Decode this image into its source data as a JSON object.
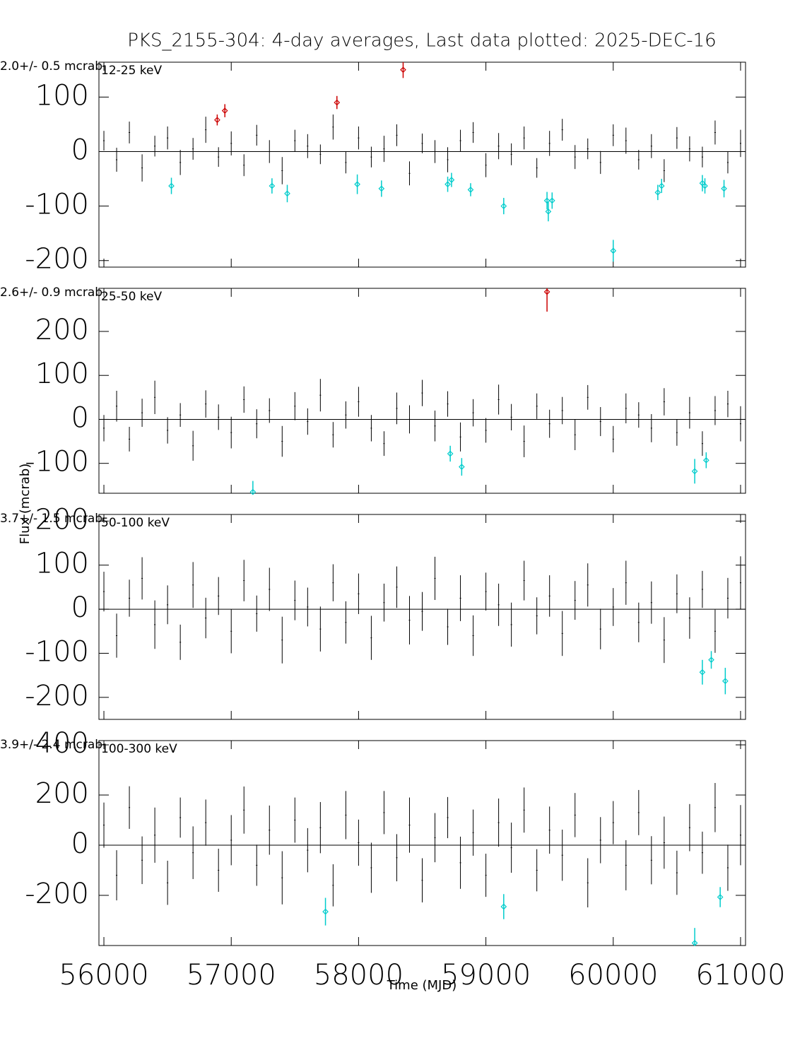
{
  "title": "PKS_2155-304:  4-day averages,  Last data plotted: 2025-DEC-16",
  "y_label": "Flux (mcrab)",
  "x_label": "Time (MJD)",
  "chart_data": [
    {
      "type": "errorbar",
      "band": "12-25 keV",
      "mean_label": "2.0+/-    0.5 mcrab",
      "xlim": [
        55961,
        61039
      ],
      "xticks": [
        56000,
        57000,
        58000,
        59000,
        60000,
        61000
      ],
      "ylim": [
        -212,
        164
      ],
      "yticks": [
        -200,
        -100,
        0,
        100
      ],
      "series": [
        {
          "color": "#000000",
          "marker": "none",
          "x": [
            56000,
            56100,
            56200,
            56300,
            56400,
            56500,
            56600,
            56700,
            56800,
            56900,
            57000,
            57100,
            57200,
            57300,
            57400,
            57500,
            57600,
            57700,
            57800,
            57900,
            58000,
            58100,
            58200,
            58300,
            58400,
            58500,
            58600,
            58700,
            58800,
            58900,
            59000,
            59100,
            59200,
            59300,
            59400,
            59500,
            59600,
            59700,
            59800,
            59900,
            60000,
            60100,
            60200,
            60300,
            60400,
            60500,
            60600,
            60700,
            60800,
            60900,
            61000
          ],
          "values": [
            20,
            -15,
            35,
            -30,
            10,
            25,
            -20,
            5,
            40,
            -10,
            15,
            -25,
            30,
            0,
            -35,
            20,
            10,
            -5,
            45,
            -20,
            25,
            -10,
            5,
            30,
            -40,
            15,
            0,
            -15,
            20,
            35,
            -25,
            10,
            -5,
            25,
            -30,
            15,
            40,
            -10,
            5,
            -20,
            30,
            20,
            -15,
            10,
            -35,
            25,
            5,
            -10,
            35,
            -20,
            15
          ],
          "errors": [
            18,
            22,
            20,
            25,
            19,
            21,
            23,
            20,
            24,
            18,
            22,
            20,
            19,
            21,
            25,
            20,
            22,
            18,
            23,
            20,
            21,
            19,
            24,
            20,
            22,
            18,
            21,
            23,
            20,
            19,
            22,
            24,
            20,
            21,
            18,
            23,
            20,
            22,
            19,
            21,
            20,
            24,
            18,
            22,
            21,
            20,
            23,
            19,
            22,
            20,
            25
          ]
        },
        {
          "color": "#cc0000",
          "marker": "diamond",
          "x": [
            56890,
            56950,
            57830,
            58350
          ],
          "values": [
            58,
            75,
            90,
            150
          ],
          "errors": [
            10,
            12,
            12,
            15
          ]
        },
        {
          "color": "#00cccc",
          "marker": "diamond",
          "x": [
            56530,
            57320,
            57440,
            57990,
            58180,
            58700,
            58730,
            58880,
            59140,
            59480,
            59490,
            59520,
            60000,
            60350,
            60380,
            60700,
            60720,
            60870
          ],
          "values": [
            -63,
            -63,
            -77,
            -60,
            -68,
            -60,
            -52,
            -70,
            -100,
            -90,
            -110,
            -90,
            -182,
            -75,
            -63,
            -58,
            -63,
            -68
          ],
          "errors": [
            15,
            14,
            16,
            18,
            15,
            14,
            13,
            12,
            15,
            16,
            18,
            15,
            20,
            14,
            13,
            15,
            14,
            16
          ]
        }
      ]
    },
    {
      "type": "errorbar",
      "band": "25-50 keV",
      "mean_label": "2.6+/-    0.9 mcrab",
      "xlim": [
        55961,
        61039
      ],
      "xticks": [
        56000,
        57000,
        58000,
        59000,
        60000,
        61000
      ],
      "ylim": [
        -168,
        298
      ],
      "yticks": [
        -100,
        0,
        100,
        200
      ],
      "series": [
        {
          "color": "#000000",
          "marker": "none",
          "x": [
            56000,
            56100,
            56200,
            56300,
            56400,
            56500,
            56600,
            56700,
            56800,
            56900,
            57000,
            57100,
            57200,
            57300,
            57400,
            57500,
            57600,
            57700,
            57800,
            57900,
            58000,
            58100,
            58200,
            58300,
            58400,
            58500,
            58600,
            58700,
            58800,
            58900,
            59000,
            59100,
            59200,
            59300,
            59400,
            59500,
            59600,
            59700,
            59800,
            59900,
            60000,
            60100,
            60200,
            60300,
            60400,
            60500,
            60600,
            60700,
            60800,
            60900,
            61000
          ],
          "values": [
            -20,
            30,
            -45,
            15,
            50,
            -25,
            10,
            -60,
            35,
            5,
            -30,
            45,
            -10,
            20,
            -50,
            30,
            -5,
            55,
            -35,
            10,
            40,
            -20,
            -55,
            25,
            0,
            60,
            -15,
            35,
            -40,
            15,
            -25,
            45,
            5,
            -50,
            30,
            -10,
            20,
            -35,
            50,
            -5,
            -45,
            25,
            10,
            -20,
            40,
            -30,
            15,
            -55,
            20,
            35,
            -10
          ],
          "errors": [
            30,
            35,
            28,
            32,
            38,
            30,
            27,
            34,
            31,
            29,
            36,
            30,
            33,
            28,
            35,
            32,
            30,
            37,
            29,
            31,
            34,
            30,
            28,
            36,
            32,
            30,
            35,
            29,
            33,
            31,
            28,
            34,
            30,
            36,
            29,
            32,
            31,
            35,
            28,
            33,
            30,
            34,
            29,
            32,
            31,
            30,
            36,
            28,
            33,
            30,
            40
          ]
        },
        {
          "color": "#cc0000",
          "marker": "diamond",
          "x": [
            59480
          ],
          "values": [
            290
          ],
          "errors": [
            45
          ]
        },
        {
          "color": "#00cccc",
          "marker": "diamond",
          "x": [
            57170,
            58720,
            58810,
            60640,
            60730
          ],
          "values": [
            -165,
            -78,
            -108,
            -118,
            -93
          ],
          "errors": [
            25,
            18,
            20,
            28,
            18
          ]
        }
      ]
    },
    {
      "type": "errorbar",
      "band": "50-100 keV",
      "mean_label": "3.7+/-    1.5 mcrab",
      "xlim": [
        55961,
        61039
      ],
      "xticks": [
        56000,
        57000,
        58000,
        59000,
        60000,
        61000
      ],
      "ylim": [
        -250,
        215
      ],
      "yticks": [
        -200,
        -100,
        0,
        100,
        200
      ],
      "series": [
        {
          "color": "#000000",
          "marker": "none",
          "x": [
            56000,
            56100,
            56200,
            56300,
            56400,
            56500,
            56600,
            56700,
            56800,
            56900,
            57000,
            57100,
            57200,
            57300,
            57400,
            57500,
            57600,
            57700,
            57800,
            57900,
            58000,
            58100,
            58200,
            58300,
            58400,
            58500,
            58600,
            58700,
            58800,
            58900,
            59000,
            59100,
            59200,
            59300,
            59400,
            59500,
            59600,
            59700,
            59800,
            59900,
            60000,
            60100,
            60200,
            60300,
            60400,
            60500,
            60600,
            60700,
            60800,
            60900,
            61000
          ],
          "values": [
            40,
            -60,
            25,
            70,
            -35,
            10,
            -75,
            55,
            -20,
            30,
            -50,
            65,
            -10,
            45,
            -70,
            20,
            5,
            -45,
            60,
            -30,
            35,
            -65,
            15,
            50,
            -25,
            -5,
            70,
            -40,
            25,
            -60,
            40,
            10,
            -35,
            65,
            -15,
            30,
            -55,
            20,
            55,
            -45,
            5,
            60,
            -30,
            15,
            -70,
            35,
            -20,
            45,
            -50,
            25,
            60
          ],
          "errors": [
            45,
            50,
            42,
            48,
            55,
            44,
            40,
            52,
            46,
            43,
            50,
            47,
            41,
            49,
            53,
            45,
            44,
            51,
            42,
            48,
            46,
            50,
            43,
            47,
            55,
            44,
            49,
            41,
            52,
            46,
            43,
            48,
            50,
            45,
            42,
            47,
            51,
            44,
            49,
            46,
            43,
            50,
            45,
            48,
            52,
            44,
            47,
            42,
            49,
            46,
            60
          ]
        },
        {
          "color": "#00cccc",
          "marker": "diamond",
          "x": [
            60700,
            60770,
            60880
          ],
          "values": [
            -143,
            -115,
            -163
          ],
          "errors": [
            28,
            20,
            30
          ]
        }
      ]
    },
    {
      "type": "errorbar",
      "band": "100-300 keV",
      "mean_label": "3.9+/-    2.4 mcrab",
      "xlim": [
        55961,
        61039
      ],
      "xticks": [
        56000,
        57000,
        58000,
        59000,
        60000,
        61000
      ],
      "ylim": [
        -400,
        417
      ],
      "yticks": [
        -200,
        0,
        200,
        400
      ],
      "series": [
        {
          "color": "#000000",
          "marker": "none",
          "x": [
            56000,
            56100,
            56200,
            56300,
            56400,
            56500,
            56600,
            56700,
            56800,
            56900,
            57000,
            57100,
            57200,
            57300,
            57400,
            57500,
            57600,
            57700,
            57800,
            57900,
            58000,
            58100,
            58200,
            58300,
            58400,
            58500,
            58600,
            58700,
            58800,
            58900,
            59000,
            59100,
            59200,
            59300,
            59400,
            59500,
            59600,
            59700,
            59800,
            59900,
            60000,
            60100,
            60200,
            60300,
            60400,
            60500,
            60600,
            60700,
            60800,
            60900,
            61000
          ],
          "values": [
            80,
            -120,
            150,
            -60,
            40,
            -150,
            110,
            -30,
            90,
            -100,
            20,
            140,
            -80,
            60,
            -130,
            100,
            -20,
            70,
            -160,
            120,
            10,
            -90,
            130,
            -50,
            80,
            -140,
            30,
            110,
            -70,
            50,
            -120,
            90,
            -10,
            140,
            -100,
            60,
            -40,
            120,
            -150,
            20,
            90,
            -80,
            130,
            -60,
            10,
            -110,
            70,
            -30,
            150,
            -90,
            40
          ],
          "errors": [
            90,
            100,
            85,
            95,
            110,
            88,
            80,
            105,
            92,
            86,
            100,
            94,
            82,
            98,
            106,
            90,
            88,
            102,
            84,
            96,
            92,
            100,
            86,
            94,
            110,
            88,
            98,
            82,
            104,
            92,
            86,
            96,
            100,
            90,
            84,
            94,
            102,
            88,
            98,
            92,
            86,
            100,
            90,
            96,
            104,
            88,
            94,
            84,
            98,
            92,
            120
          ]
        },
        {
          "color": "#00cccc",
          "marker": "diamond",
          "x": [
            57740,
            59140,
            60640,
            60840
          ],
          "values": [
            -265,
            -245,
            -390,
            -207
          ],
          "errors": [
            55,
            50,
            60,
            40
          ]
        }
      ]
    }
  ]
}
